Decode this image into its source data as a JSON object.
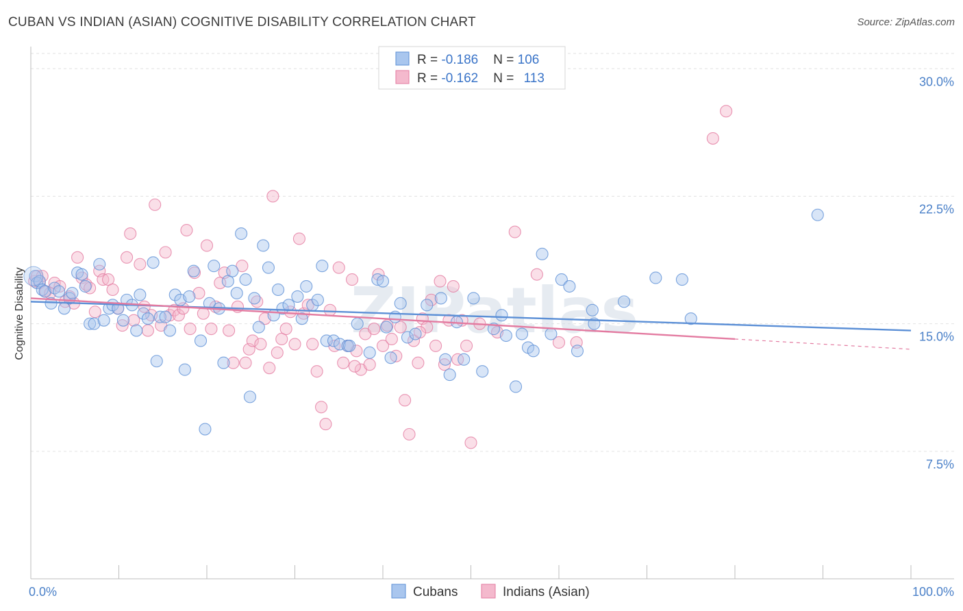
{
  "header": {
    "title": "CUBAN VS INDIAN (ASIAN) COGNITIVE DISABILITY CORRELATION CHART",
    "source": "Source: ZipAtlas.com"
  },
  "watermark": "ZIPatlas",
  "chart_data": {
    "type": "scatter",
    "ylabel": "Cognitive Disability",
    "xlim": [
      0,
      100
    ],
    "ylim": [
      0,
      31.3
    ],
    "x_ticks": [
      "0.0%",
      "100.0%"
    ],
    "y_ticks": [
      {
        "value": 7.5,
        "label": "7.5%"
      },
      {
        "value": 15.0,
        "label": "15.0%"
      },
      {
        "value": 22.5,
        "label": "22.5%"
      },
      {
        "value": 30.0,
        "label": "30.0%"
      }
    ],
    "grid": "horizontal dashed",
    "legend_position": "top-center",
    "stats": [
      {
        "r_label": "R = ",
        "r_value": "-0.186",
        "n_label": "N = ",
        "n_value": "106"
      },
      {
        "r_label": "R = ",
        "r_value": "-0.162",
        "n_label": "N = ",
        "n_value": "113"
      }
    ],
    "series": [
      {
        "name": "Cubans",
        "color": "#5b8fd6",
        "fill": "#a9c6ee",
        "trend": {
          "x": [
            0,
            100
          ],
          "y": [
            16.3,
            14.6
          ],
          "solid_to": 100
        },
        "points": [
          [
            0.5,
            17.8
          ],
          [
            0.7,
            17.4
          ],
          [
            1.0,
            17.5
          ],
          [
            1.3,
            17.0
          ],
          [
            1.6,
            16.9
          ],
          [
            2.3,
            16.2
          ],
          [
            2.7,
            17.1
          ],
          [
            3.2,
            16.9
          ],
          [
            3.8,
            15.9
          ],
          [
            4.4,
            16.5
          ],
          [
            4.7,
            16.8
          ],
          [
            5.3,
            18.0
          ],
          [
            5.8,
            17.9
          ],
          [
            6.2,
            17.2
          ],
          [
            6.7,
            15.0
          ],
          [
            7.2,
            15.0
          ],
          [
            7.8,
            18.5
          ],
          [
            8.3,
            15.2
          ],
          [
            8.9,
            15.9
          ],
          [
            9.3,
            16.1
          ],
          [
            9.9,
            15.9
          ],
          [
            10.5,
            15.2
          ],
          [
            10.9,
            16.4
          ],
          [
            11.5,
            16.1
          ],
          [
            12.0,
            14.6
          ],
          [
            12.4,
            16.7
          ],
          [
            12.8,
            15.6
          ],
          [
            13.3,
            15.3
          ],
          [
            13.9,
            18.6
          ],
          [
            14.3,
            12.8
          ],
          [
            14.7,
            15.4
          ],
          [
            15.3,
            15.4
          ],
          [
            15.8,
            14.6
          ],
          [
            16.4,
            16.7
          ],
          [
            17.0,
            16.4
          ],
          [
            17.5,
            12.3
          ],
          [
            18.0,
            16.6
          ],
          [
            18.5,
            18.1
          ],
          [
            19.3,
            14.0
          ],
          [
            19.8,
            8.8
          ],
          [
            20.3,
            16.2
          ],
          [
            20.8,
            18.4
          ],
          [
            21.4,
            15.9
          ],
          [
            21.9,
            12.7
          ],
          [
            22.4,
            17.5
          ],
          [
            22.9,
            18.1
          ],
          [
            23.4,
            16.8
          ],
          [
            23.9,
            20.3
          ],
          [
            24.4,
            17.6
          ],
          [
            24.9,
            10.7
          ],
          [
            25.4,
            16.5
          ],
          [
            25.9,
            14.8
          ],
          [
            26.4,
            19.6
          ],
          [
            27.0,
            18.3
          ],
          [
            27.6,
            15.5
          ],
          [
            28.1,
            17.0
          ],
          [
            28.6,
            15.9
          ],
          [
            29.3,
            16.1
          ],
          [
            30.3,
            16.6
          ],
          [
            30.8,
            15.3
          ],
          [
            31.3,
            17.2
          ],
          [
            32.0,
            16.1
          ],
          [
            32.6,
            16.4
          ],
          [
            33.1,
            18.4
          ],
          [
            33.6,
            14.0
          ],
          [
            34.4,
            14.0
          ],
          [
            35.1,
            13.8
          ],
          [
            36.0,
            13.7
          ],
          [
            37.1,
            15.0
          ],
          [
            38.5,
            13.3
          ],
          [
            39.4,
            17.6
          ],
          [
            40.0,
            17.5
          ],
          [
            40.4,
            14.8
          ],
          [
            40.9,
            13.0
          ],
          [
            41.4,
            15.4
          ],
          [
            42.0,
            16.2
          ],
          [
            42.8,
            14.2
          ],
          [
            43.7,
            14.4
          ],
          [
            45.0,
            16.1
          ],
          [
            46.6,
            16.5
          ],
          [
            47.1,
            12.9
          ],
          [
            47.6,
            12.0
          ],
          [
            48.4,
            15.1
          ],
          [
            49.2,
            12.9
          ],
          [
            50.3,
            16.5
          ],
          [
            51.3,
            12.2
          ],
          [
            52.6,
            14.7
          ],
          [
            53.5,
            15.5
          ],
          [
            54.0,
            14.3
          ],
          [
            55.1,
            11.3
          ],
          [
            55.8,
            14.4
          ],
          [
            56.5,
            13.6
          ],
          [
            57.1,
            13.4
          ],
          [
            58.1,
            19.1
          ],
          [
            59.1,
            14.4
          ],
          [
            60.3,
            17.6
          ],
          [
            61.2,
            17.2
          ],
          [
            62.1,
            13.4
          ],
          [
            63.8,
            15.8
          ],
          [
            64.0,
            15.0
          ],
          [
            67.4,
            16.3
          ],
          [
            71.0,
            17.7
          ],
          [
            74.0,
            17.6
          ],
          [
            75.0,
            15.3
          ],
          [
            89.4,
            21.4
          ],
          [
            36.2,
            13.7
          ]
        ]
      },
      {
        "name": "Indians (Asian)",
        "color": "#e37aa0",
        "fill": "#f4b9cd",
        "trend": {
          "x": [
            0,
            100
          ],
          "y": [
            16.5,
            13.5
          ],
          "solid_to": 80
        },
        "points": [
          [
            0.4,
            17.5
          ],
          [
            0.7,
            17.8
          ],
          [
            1.0,
            17.4
          ],
          [
            1.3,
            17.8
          ],
          [
            1.7,
            16.9
          ],
          [
            2.2,
            16.8
          ],
          [
            2.7,
            17.4
          ],
          [
            3.3,
            17.2
          ],
          [
            3.9,
            16.3
          ],
          [
            4.4,
            16.6
          ],
          [
            4.9,
            16.2
          ],
          [
            5.3,
            18.9
          ],
          [
            5.8,
            17.7
          ],
          [
            6.3,
            17.3
          ],
          [
            6.7,
            17.1
          ],
          [
            7.3,
            15.7
          ],
          [
            7.8,
            18.1
          ],
          [
            8.2,
            17.6
          ],
          [
            8.8,
            17.6
          ],
          [
            9.3,
            17.0
          ],
          [
            9.9,
            15.9
          ],
          [
            10.4,
            14.9
          ],
          [
            10.9,
            18.9
          ],
          [
            11.3,
            20.3
          ],
          [
            11.7,
            15.2
          ],
          [
            12.4,
            18.5
          ],
          [
            12.9,
            16.0
          ],
          [
            13.3,
            14.6
          ],
          [
            13.7,
            15.5
          ],
          [
            14.1,
            22.0
          ],
          [
            14.8,
            14.9
          ],
          [
            15.3,
            19.2
          ],
          [
            15.8,
            15.5
          ],
          [
            16.3,
            15.8
          ],
          [
            16.8,
            15.5
          ],
          [
            17.3,
            15.9
          ],
          [
            17.7,
            20.5
          ],
          [
            18.1,
            14.7
          ],
          [
            18.6,
            18.0
          ],
          [
            19.1,
            16.8
          ],
          [
            19.6,
            15.6
          ],
          [
            20.0,
            19.6
          ],
          [
            20.5,
            14.7
          ],
          [
            21.0,
            16.0
          ],
          [
            21.5,
            17.4
          ],
          [
            22.0,
            18.0
          ],
          [
            22.5,
            14.6
          ],
          [
            23.0,
            12.7
          ],
          [
            23.5,
            16.0
          ],
          [
            24.0,
            18.4
          ],
          [
            24.4,
            12.7
          ],
          [
            24.8,
            13.5
          ],
          [
            25.2,
            14.0
          ],
          [
            25.7,
            16.3
          ],
          [
            26.1,
            13.8
          ],
          [
            26.6,
            15.3
          ],
          [
            27.1,
            12.4
          ],
          [
            27.5,
            22.5
          ],
          [
            28.0,
            13.3
          ],
          [
            28.5,
            14.1
          ],
          [
            29.0,
            14.7
          ],
          [
            29.5,
            15.7
          ],
          [
            30.0,
            13.8
          ],
          [
            30.5,
            20.0
          ],
          [
            31.0,
            15.6
          ],
          [
            31.5,
            16.1
          ],
          [
            32.0,
            13.8
          ],
          [
            32.5,
            12.2
          ],
          [
            33.0,
            10.1
          ],
          [
            33.5,
            9.1
          ],
          [
            34.0,
            15.8
          ],
          [
            34.5,
            13.7
          ],
          [
            35.0,
            18.3
          ],
          [
            35.5,
            12.7
          ],
          [
            36.0,
            13.7
          ],
          [
            36.5,
            17.6
          ],
          [
            37.0,
            13.4
          ],
          [
            37.5,
            12.3
          ],
          [
            38.0,
            14.4
          ],
          [
            38.5,
            12.6
          ],
          [
            39.0,
            14.7
          ],
          [
            39.5,
            17.9
          ],
          [
            40.0,
            13.7
          ],
          [
            40.5,
            14.9
          ],
          [
            41.0,
            14.1
          ],
          [
            41.5,
            13.1
          ],
          [
            42.0,
            14.8
          ],
          [
            42.5,
            10.5
          ],
          [
            43.0,
            8.5
          ],
          [
            43.5,
            14.0
          ],
          [
            44.0,
            12.7
          ],
          [
            44.5,
            15.3
          ],
          [
            45.0,
            14.8
          ],
          [
            45.5,
            16.4
          ],
          [
            46.0,
            13.7
          ],
          [
            46.5,
            17.5
          ],
          [
            47.0,
            12.6
          ],
          [
            47.5,
            15.2
          ],
          [
            48.0,
            17.2
          ],
          [
            48.5,
            12.9
          ],
          [
            49.0,
            15.2
          ],
          [
            49.5,
            13.7
          ],
          [
            50.0,
            8.0
          ],
          [
            51.0,
            15.0
          ],
          [
            53.0,
            14.5
          ],
          [
            55.0,
            20.4
          ],
          [
            57.5,
            17.9
          ],
          [
            60.0,
            13.9
          ],
          [
            62.0,
            13.9
          ],
          [
            77.5,
            25.9
          ],
          [
            79.0,
            27.5
          ],
          [
            44.2,
            14.5
          ],
          [
            36.8,
            12.5
          ]
        ]
      }
    ]
  }
}
